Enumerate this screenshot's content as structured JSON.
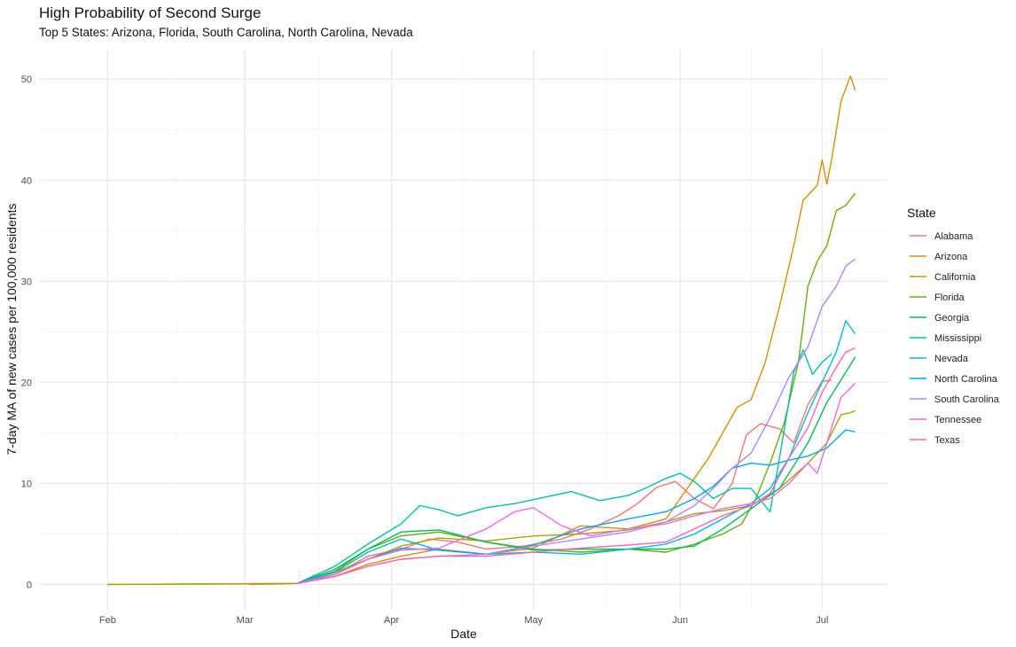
{
  "chart_data": {
    "type": "line",
    "title": "High Probability of Second Surge",
    "subtitle": "Top 5 States: Arizona, Florida, South Carolina, North Carolina, Nevada",
    "xlabel": "Date",
    "ylabel": "7-day MA of new cases per 100,000 residents",
    "x_unit": "day index (0 = Feb 1, 2020)",
    "xlim": [
      -14.5,
      165
    ],
    "ylim": [
      -2.5,
      53
    ],
    "x_ticks": [
      {
        "label": "Feb",
        "day": 0
      },
      {
        "label": "Mar",
        "day": 29
      },
      {
        "label": "Apr",
        "day": 60
      },
      {
        "label": "May",
        "day": 90
      },
      {
        "label": "Jun",
        "day": 121
      },
      {
        "label": "Jul",
        "day": 151
      }
    ],
    "y_ticks": [
      0,
      10,
      20,
      30,
      40,
      50
    ],
    "grid": true,
    "legend": {
      "title": "State",
      "position": "right"
    },
    "series": [
      {
        "name": "Alabama",
        "color": "#F8766D",
        "points": [
          [
            30,
            0
          ],
          [
            40,
            0.1
          ],
          [
            48,
            1.0
          ],
          [
            55,
            2.8
          ],
          [
            62,
            3.5
          ],
          [
            68,
            4.5
          ],
          [
            74,
            4.2
          ],
          [
            80,
            3.5
          ],
          [
            88,
            3.8
          ],
          [
            96,
            4.5
          ],
          [
            102,
            5.5
          ],
          [
            108,
            6.8
          ],
          [
            112,
            8.0
          ],
          [
            116,
            9.6
          ],
          [
            120,
            10.2
          ],
          [
            124,
            8.5
          ],
          [
            128,
            7.5
          ],
          [
            132,
            10.0
          ],
          [
            135,
            14.8
          ],
          [
            138,
            15.9
          ],
          [
            142,
            15.4
          ],
          [
            145,
            14.0
          ],
          [
            148,
            17.8
          ],
          [
            151,
            20.1
          ],
          [
            153,
            20.2
          ]
        ]
      },
      {
        "name": "Arizona",
        "color": "#DB8E00",
        "points": [
          [
            0,
            0
          ],
          [
            40,
            0.1
          ],
          [
            48,
            0.8
          ],
          [
            55,
            2.0
          ],
          [
            62,
            2.8
          ],
          [
            70,
            3.5
          ],
          [
            80,
            3.0
          ],
          [
            90,
            3.6
          ],
          [
            100,
            5.8
          ],
          [
            110,
            5.5
          ],
          [
            118,
            6.5
          ],
          [
            121,
            8.5
          ],
          [
            124,
            10.5
          ],
          [
            127,
            12.5
          ],
          [
            130,
            15.0
          ],
          [
            133,
            17.5
          ],
          [
            136,
            18.3
          ],
          [
            139,
            22.0
          ],
          [
            142,
            27.5
          ],
          [
            145,
            33.5
          ],
          [
            147,
            38.0
          ],
          [
            150,
            39.5
          ],
          [
            151,
            42.0
          ],
          [
            152,
            39.6
          ],
          [
            153,
            42.0
          ],
          [
            155,
            47.8
          ],
          [
            157,
            50.3
          ],
          [
            158,
            48.9
          ]
        ]
      },
      {
        "name": "California",
        "color": "#AEA200",
        "points": [
          [
            0,
            0
          ],
          [
            40,
            0.1
          ],
          [
            48,
            1.2
          ],
          [
            55,
            2.5
          ],
          [
            62,
            3.8
          ],
          [
            70,
            4.6
          ],
          [
            80,
            4.3
          ],
          [
            90,
            4.8
          ],
          [
            100,
            5.0
          ],
          [
            110,
            5.4
          ],
          [
            118,
            6.2
          ],
          [
            124,
            7.0
          ],
          [
            130,
            7.3
          ],
          [
            136,
            7.8
          ],
          [
            142,
            9.5
          ],
          [
            148,
            12.0
          ],
          [
            152,
            14.0
          ],
          [
            155,
            16.8
          ],
          [
            157,
            17.0
          ],
          [
            158,
            17.2
          ]
        ]
      },
      {
        "name": "Florida",
        "color": "#64B200",
        "points": [
          [
            40,
            0.1
          ],
          [
            48,
            1.3
          ],
          [
            55,
            3.5
          ],
          [
            62,
            4.8
          ],
          [
            70,
            5.2
          ],
          [
            80,
            4.2
          ],
          [
            90,
            3.5
          ],
          [
            100,
            3.2
          ],
          [
            110,
            3.5
          ],
          [
            118,
            3.2
          ],
          [
            124,
            4.0
          ],
          [
            130,
            5.0
          ],
          [
            134,
            6.0
          ],
          [
            137,
            8.5
          ],
          [
            140,
            12.0
          ],
          [
            143,
            16.0
          ],
          [
            146,
            22.0
          ],
          [
            148,
            29.5
          ],
          [
            150,
            32.0
          ],
          [
            152,
            33.5
          ],
          [
            154,
            37.0
          ],
          [
            156,
            37.5
          ],
          [
            158,
            38.7
          ]
        ]
      },
      {
        "name": "Georgia",
        "color": "#00BD5C",
        "points": [
          [
            40,
            0.1
          ],
          [
            48,
            1.5
          ],
          [
            55,
            3.5
          ],
          [
            62,
            5.2
          ],
          [
            70,
            5.4
          ],
          [
            80,
            4.2
          ],
          [
            90,
            3.4
          ],
          [
            100,
            3.5
          ],
          [
            110,
            3.5
          ],
          [
            118,
            3.5
          ],
          [
            124,
            3.8
          ],
          [
            130,
            5.5
          ],
          [
            136,
            7.5
          ],
          [
            142,
            9.5
          ],
          [
            148,
            14.0
          ],
          [
            152,
            18.0
          ],
          [
            156,
            21.0
          ],
          [
            158,
            22.5
          ]
        ]
      },
      {
        "name": "Mississippi",
        "color": "#00C1A7",
        "points": [
          [
            40,
            0.1
          ],
          [
            48,
            1.8
          ],
          [
            55,
            4.0
          ],
          [
            62,
            6.0
          ],
          [
            66,
            7.8
          ],
          [
            70,
            7.4
          ],
          [
            74,
            6.8
          ],
          [
            80,
            7.6
          ],
          [
            86,
            8.0
          ],
          [
            92,
            8.6
          ],
          [
            98,
            9.2
          ],
          [
            104,
            8.3
          ],
          [
            110,
            8.8
          ],
          [
            114,
            9.6
          ],
          [
            118,
            10.5
          ],
          [
            121,
            11.0
          ],
          [
            124,
            10.2
          ],
          [
            128,
            8.5
          ],
          [
            132,
            9.5
          ],
          [
            136,
            9.5
          ],
          [
            140,
            7.2
          ],
          [
            142,
            12.5
          ],
          [
            145,
            21.0
          ],
          [
            147,
            23.2
          ],
          [
            149,
            20.8
          ],
          [
            151,
            22.0
          ],
          [
            153,
            22.8
          ]
        ]
      },
      {
        "name": "Nevada",
        "color": "#00BADE",
        "points": [
          [
            40,
            0.1
          ],
          [
            48,
            1.2
          ],
          [
            55,
            3.2
          ],
          [
            62,
            4.5
          ],
          [
            70,
            3.4
          ],
          [
            80,
            3.0
          ],
          [
            90,
            3.2
          ],
          [
            100,
            3.0
          ],
          [
            110,
            3.5
          ],
          [
            118,
            4.0
          ],
          [
            124,
            5.0
          ],
          [
            130,
            6.5
          ],
          [
            136,
            8.0
          ],
          [
            140,
            9.5
          ],
          [
            144,
            12.5
          ],
          [
            148,
            17.0
          ],
          [
            151,
            20.0
          ],
          [
            154,
            23.0
          ],
          [
            156,
            26.1
          ],
          [
            158,
            24.8
          ]
        ]
      },
      {
        "name": "North Carolina",
        "color": "#00A6FF",
        "points": [
          [
            40,
            0.1
          ],
          [
            48,
            1.0
          ],
          [
            55,
            2.5
          ],
          [
            62,
            3.6
          ],
          [
            70,
            3.4
          ],
          [
            80,
            3.0
          ],
          [
            90,
            3.9
          ],
          [
            100,
            5.5
          ],
          [
            110,
            6.5
          ],
          [
            118,
            7.2
          ],
          [
            124,
            8.5
          ],
          [
            128,
            9.7
          ],
          [
            132,
            11.5
          ],
          [
            136,
            12.0
          ],
          [
            140,
            11.8
          ],
          [
            144,
            12.3
          ],
          [
            148,
            12.7
          ],
          [
            152,
            13.5
          ],
          [
            156,
            15.3
          ],
          [
            158,
            15.1
          ]
        ]
      },
      {
        "name": "South Carolina",
        "color": "#B385FF",
        "points": [
          [
            40,
            0.1
          ],
          [
            48,
            0.8
          ],
          [
            55,
            1.8
          ],
          [
            62,
            2.5
          ],
          [
            70,
            2.8
          ],
          [
            80,
            3.0
          ],
          [
            90,
            3.8
          ],
          [
            100,
            4.5
          ],
          [
            110,
            5.2
          ],
          [
            118,
            6.2
          ],
          [
            124,
            7.8
          ],
          [
            128,
            9.5
          ],
          [
            132,
            11.5
          ],
          [
            136,
            13.0
          ],
          [
            140,
            16.5
          ],
          [
            144,
            20.5
          ],
          [
            148,
            23.5
          ],
          [
            151,
            27.5
          ],
          [
            154,
            29.5
          ],
          [
            156,
            31.5
          ],
          [
            158,
            32.2
          ]
        ]
      },
      {
        "name": "Tennessee",
        "color": "#EF67EB",
        "points": [
          [
            40,
            0.1
          ],
          [
            48,
            1.0
          ],
          [
            55,
            2.5
          ],
          [
            62,
            3.4
          ],
          [
            70,
            3.6
          ],
          [
            80,
            5.5
          ],
          [
            86,
            7.2
          ],
          [
            90,
            7.6
          ],
          [
            96,
            5.8
          ],
          [
            102,
            4.8
          ],
          [
            110,
            5.5
          ],
          [
            118,
            6.0
          ],
          [
            124,
            6.8
          ],
          [
            130,
            7.5
          ],
          [
            136,
            8.0
          ],
          [
            140,
            8.5
          ],
          [
            144,
            10.0
          ],
          [
            148,
            12.0
          ],
          [
            150,
            11.0
          ],
          [
            152,
            14.0
          ],
          [
            155,
            18.5
          ],
          [
            158,
            19.9
          ]
        ]
      },
      {
        "name": "Texas",
        "color": "#FF63B6",
        "points": [
          [
            40,
            0.1
          ],
          [
            48,
            0.8
          ],
          [
            55,
            1.8
          ],
          [
            62,
            2.5
          ],
          [
            70,
            2.8
          ],
          [
            80,
            2.8
          ],
          [
            90,
            3.2
          ],
          [
            100,
            3.6
          ],
          [
            110,
            3.9
          ],
          [
            118,
            4.2
          ],
          [
            124,
            5.5
          ],
          [
            130,
            6.8
          ],
          [
            136,
            7.8
          ],
          [
            140,
            9.0
          ],
          [
            144,
            12.5
          ],
          [
            148,
            15.5
          ],
          [
            151,
            19.0
          ],
          [
            154,
            21.5
          ],
          [
            156,
            23.0
          ],
          [
            158,
            23.4
          ]
        ]
      }
    ]
  }
}
